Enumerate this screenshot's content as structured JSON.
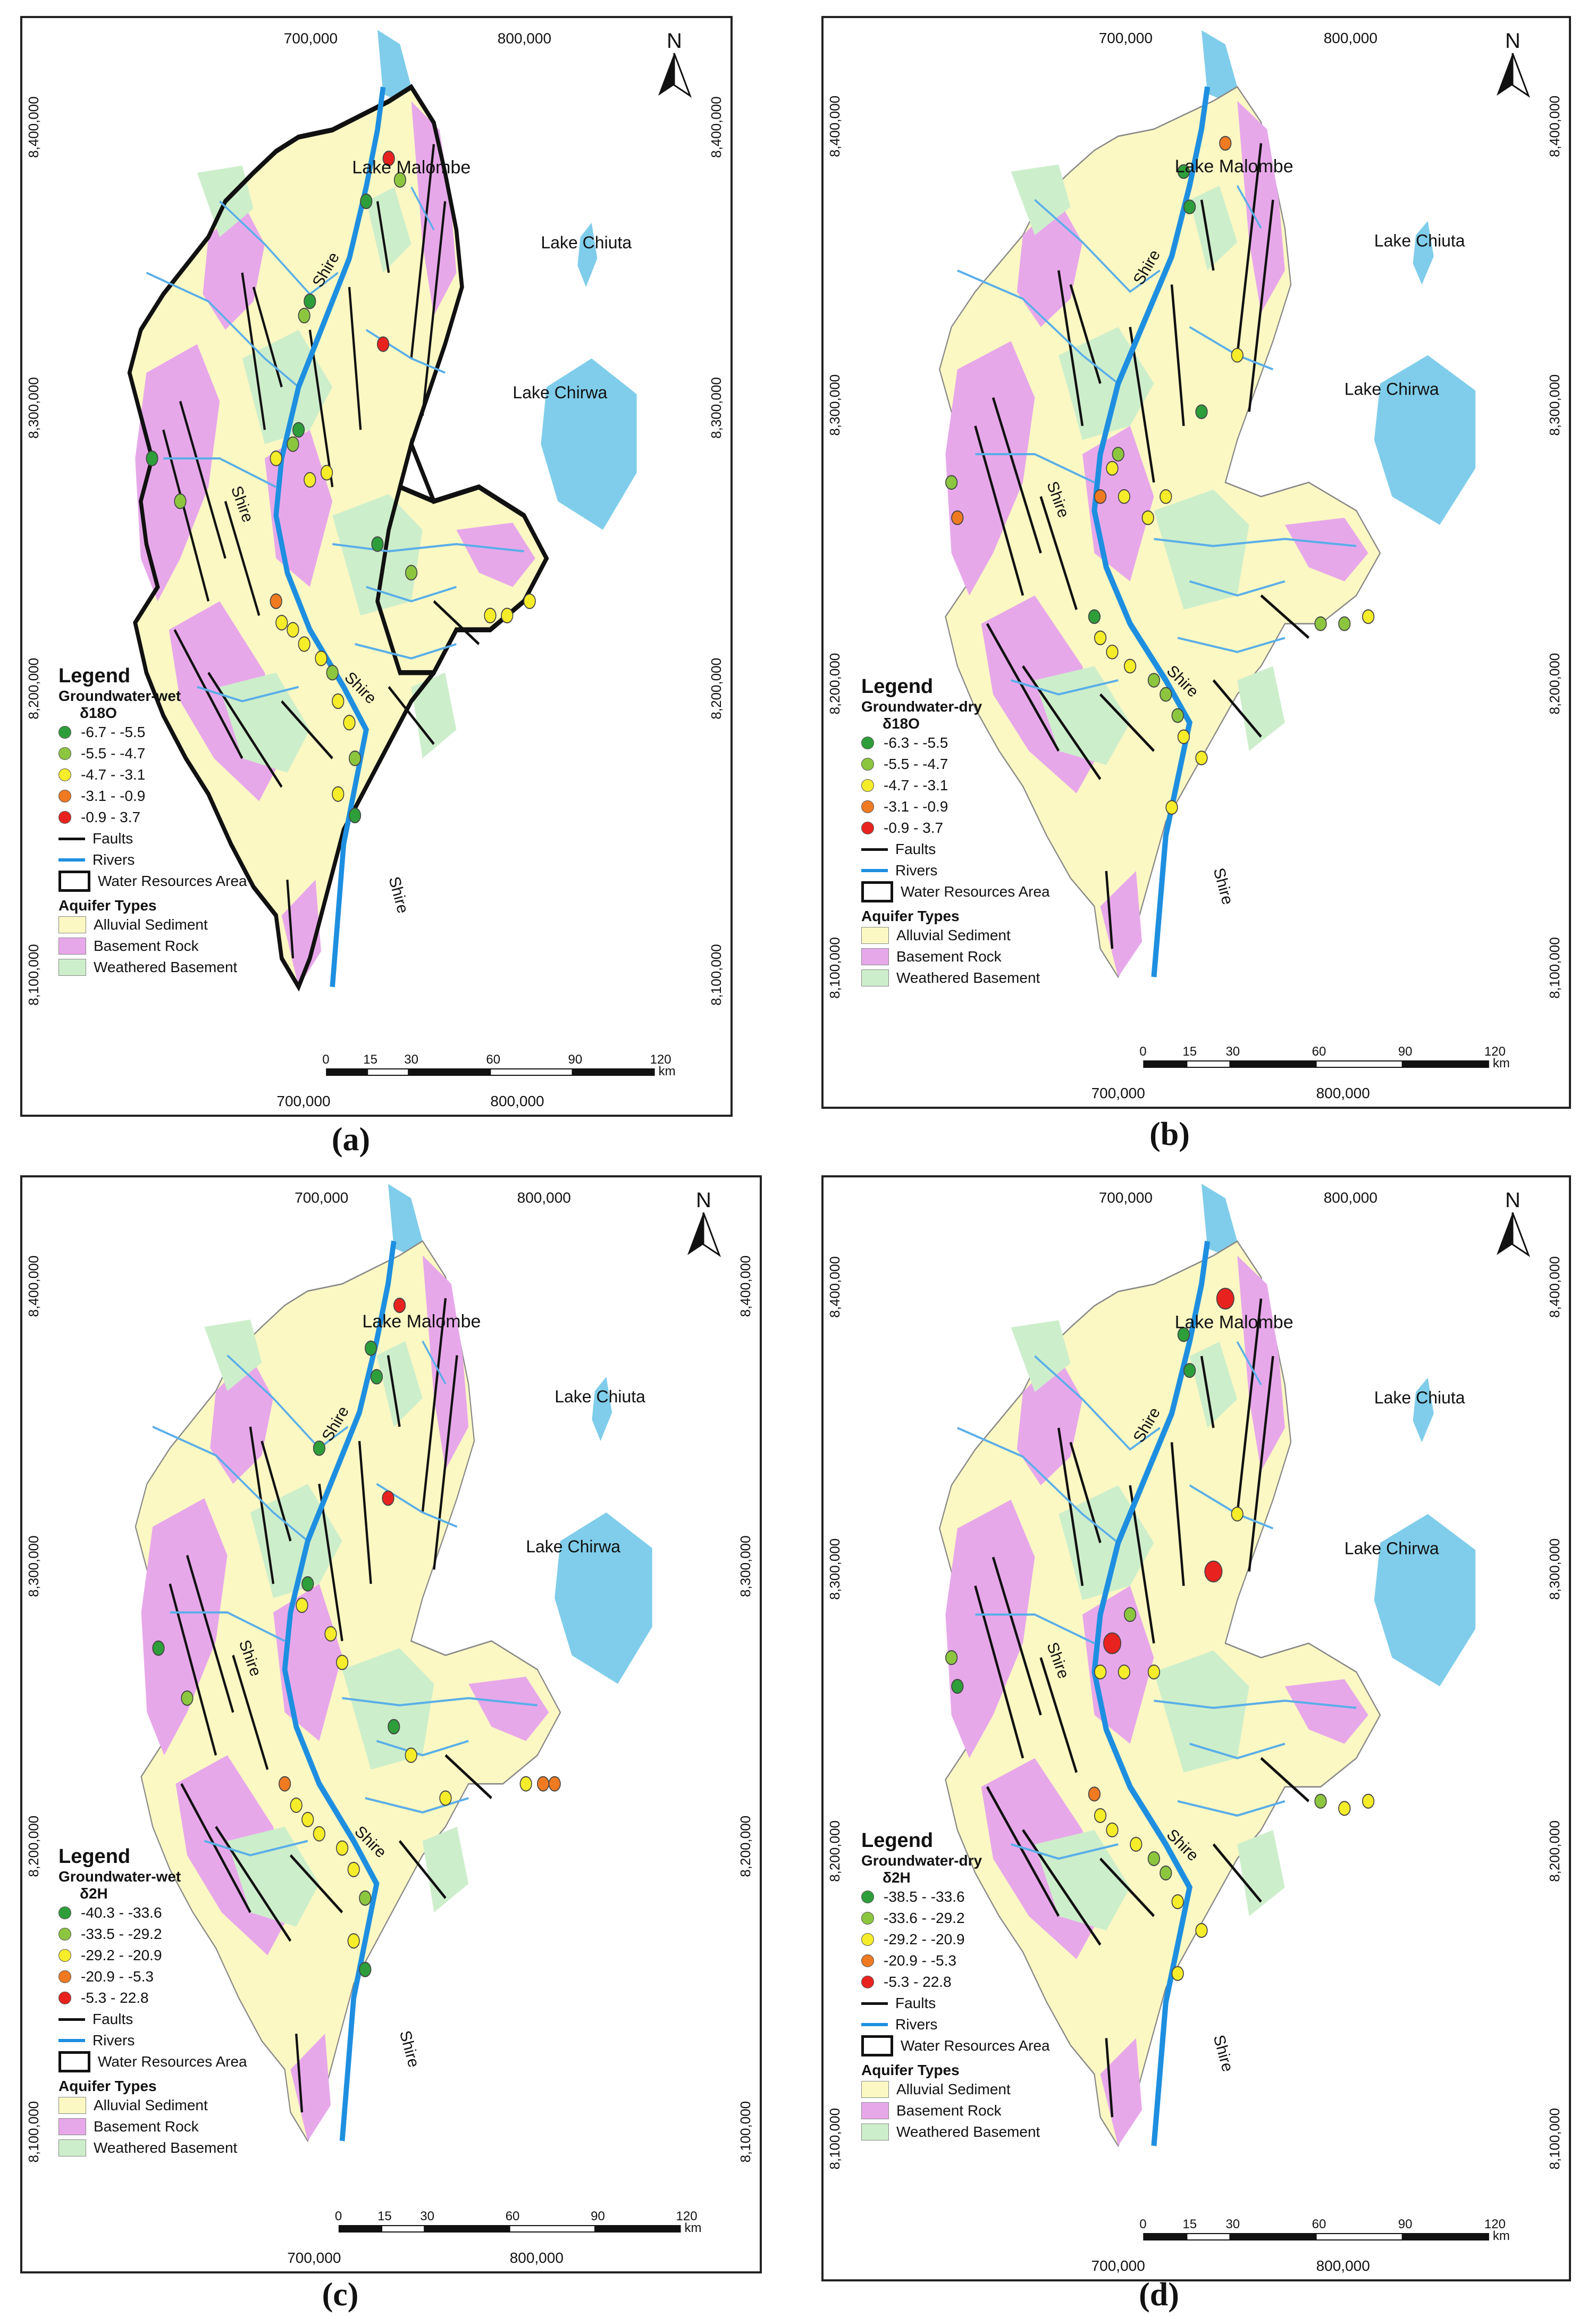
{
  "figure": {
    "panels": [
      {
        "caption": "(a)",
        "legend_title": "Legend",
        "dataset": "Groundwater-wet",
        "isotope": "δ18O",
        "classes": [
          {
            "range": "-6.7 - -5.5",
            "color": "#2e9e3a"
          },
          {
            "range": "-5.5 - -4.7",
            "color": "#8cc63f"
          },
          {
            "range": "-4.7 - -3.1",
            "color": "#f5ec2a"
          },
          {
            "range": "-3.1 - -0.9",
            "color": "#f07a22"
          },
          {
            "range": "-0.9 - 3.7",
            "color": "#e8231f"
          }
        ]
      },
      {
        "caption": "(b)",
        "legend_title": "Legend",
        "dataset": "Groundwater-dry",
        "isotope": "δ18O",
        "classes": [
          {
            "range": "-6.3 - -5.5",
            "color": "#2e9e3a"
          },
          {
            "range": "-5.5 - -4.7",
            "color": "#8cc63f"
          },
          {
            "range": "-4.7 - -3.1",
            "color": "#f5ec2a"
          },
          {
            "range": "-3.1 - -0.9",
            "color": "#f07a22"
          },
          {
            "range": "-0.9 - 3.7",
            "color": "#e8231f"
          }
        ]
      },
      {
        "caption": "(c)",
        "legend_title": "Legend",
        "dataset": "Groundwater-wet",
        "isotope": "δ2H",
        "classes": [
          {
            "range": "-40.3 - -33.6",
            "color": "#2e9e3a"
          },
          {
            "range": "-33.5 - -29.2",
            "color": "#8cc63f"
          },
          {
            "range": "-29.2 - -20.9",
            "color": "#f5ec2a"
          },
          {
            "range": "-20.9 - -5.3",
            "color": "#f07a22"
          },
          {
            "range": "-5.3 - 22.8",
            "color": "#e8231f"
          }
        ]
      },
      {
        "caption": "(d)",
        "legend_title": "Legend",
        "dataset": "Groundwater-dry",
        "isotope": "δ2H",
        "classes": [
          {
            "range": "-38.5 - -33.6",
            "color": "#2e9e3a"
          },
          {
            "range": "-33.6 - -29.2",
            "color": "#8cc63f"
          },
          {
            "range": "-29.2 - -20.9",
            "color": "#f5ec2a"
          },
          {
            "range": "-20.9 - -5.3",
            "color": "#f07a22"
          },
          {
            "range": "-5.3 - 22.8",
            "color": "#e8231f"
          }
        ]
      }
    ],
    "common": {
      "faults": "Faults",
      "rivers": "Rivers",
      "wra": "Water Resources Area",
      "aquifer_title": "Aquifer Types",
      "aquifers": [
        {
          "name": "Alluvial Sediment",
          "color": "#fbf8c4"
        },
        {
          "name": "Basement Rock",
          "color": "#e7a8ea"
        },
        {
          "name": "Weathered Basement",
          "color": "#cdeecb"
        }
      ],
      "x_ticks": [
        "700,000",
        "800,000"
      ],
      "y_ticks": [
        "8,400,000",
        "8,300,000",
        "8,200,000",
        "8,100,000"
      ],
      "north": "N",
      "scale_labels": [
        "0",
        "15",
        "30",
        "60",
        "90",
        "120"
      ],
      "scale_unit": "km",
      "lakes": {
        "malombe": "Lake Malombe",
        "chiuta": "Lake Chiuta",
        "chirwa": "Lake Chirwa"
      },
      "river_name": "Shire",
      "colors": {
        "lake": "#7fcdea",
        "river": "#1e8fe0",
        "fault": "#111111"
      }
    }
  }
}
